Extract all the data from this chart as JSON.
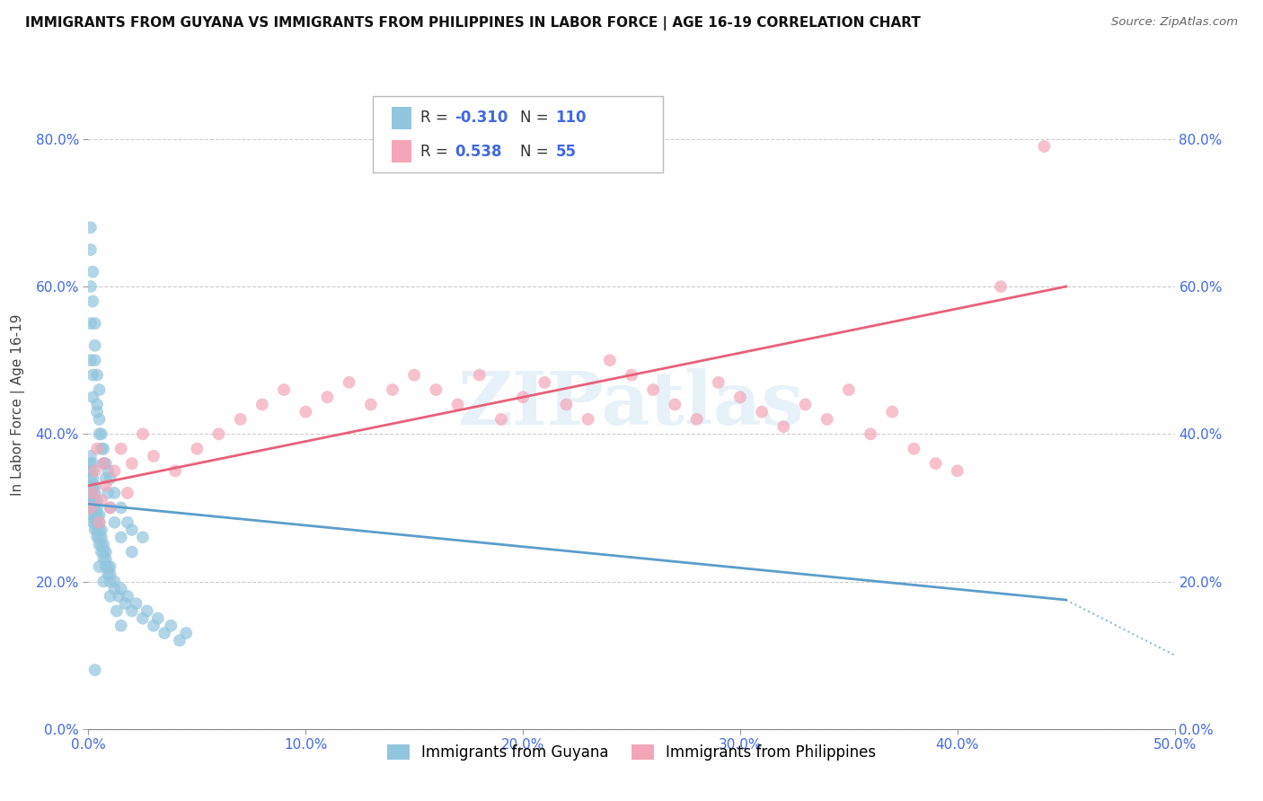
{
  "title": "IMMIGRANTS FROM GUYANA VS IMMIGRANTS FROM PHILIPPINES IN LABOR FORCE | AGE 16-19 CORRELATION CHART",
  "source": "Source: ZipAtlas.com",
  "ylabel": "In Labor Force | Age 16-19",
  "xlim": [
    0.0,
    0.5
  ],
  "ylim": [
    0.0,
    0.88
  ],
  "xticks": [
    0.0,
    0.1,
    0.2,
    0.3,
    0.4,
    0.5
  ],
  "yticks": [
    0.0,
    0.2,
    0.4,
    0.6,
    0.8
  ],
  "color_blue": "#92c5de",
  "color_pink": "#f4a6b8",
  "color_trend_blue": "#5b9ec9",
  "color_trend_pink": "#e8607a",
  "watermark_text": "ZIPatlas",
  "guyana_x": [
    0.001,
    0.001,
    0.001,
    0.001,
    0.001,
    0.001,
    0.001,
    0.001,
    0.001,
    0.001,
    0.002,
    0.002,
    0.002,
    0.002,
    0.002,
    0.002,
    0.002,
    0.002,
    0.002,
    0.003,
    0.003,
    0.003,
    0.003,
    0.003,
    0.003,
    0.003,
    0.004,
    0.004,
    0.004,
    0.004,
    0.004,
    0.004,
    0.005,
    0.005,
    0.005,
    0.005,
    0.005,
    0.006,
    0.006,
    0.006,
    0.006,
    0.007,
    0.007,
    0.007,
    0.008,
    0.008,
    0.008,
    0.009,
    0.009,
    0.01,
    0.01,
    0.01,
    0.012,
    0.012,
    0.014,
    0.015,
    0.017,
    0.018,
    0.02,
    0.022,
    0.025,
    0.027,
    0.03,
    0.032,
    0.035,
    0.038,
    0.042,
    0.045,
    0.001,
    0.001,
    0.001,
    0.002,
    0.002,
    0.003,
    0.004,
    0.005,
    0.006,
    0.007,
    0.008,
    0.009,
    0.01,
    0.012,
    0.015,
    0.018,
    0.02,
    0.025,
    0.001,
    0.001,
    0.002,
    0.002,
    0.003,
    0.003,
    0.004,
    0.004,
    0.005,
    0.005,
    0.006,
    0.007,
    0.008,
    0.009,
    0.01,
    0.012,
    0.015,
    0.02,
    0.003,
    0.005,
    0.007,
    0.01,
    0.013,
    0.015
  ],
  "guyana_y": [
    0.3,
    0.3,
    0.31,
    0.31,
    0.32,
    0.33,
    0.34,
    0.35,
    0.36,
    0.37,
    0.28,
    0.29,
    0.3,
    0.31,
    0.32,
    0.33,
    0.34,
    0.35,
    0.36,
    0.27,
    0.28,
    0.29,
    0.3,
    0.31,
    0.32,
    0.33,
    0.26,
    0.27,
    0.28,
    0.29,
    0.3,
    0.31,
    0.25,
    0.26,
    0.27,
    0.28,
    0.29,
    0.24,
    0.25,
    0.26,
    0.27,
    0.23,
    0.24,
    0.25,
    0.22,
    0.23,
    0.24,
    0.21,
    0.22,
    0.2,
    0.21,
    0.22,
    0.19,
    0.2,
    0.18,
    0.19,
    0.17,
    0.18,
    0.16,
    0.17,
    0.15,
    0.16,
    0.14,
    0.15,
    0.13,
    0.14,
    0.12,
    0.13,
    0.5,
    0.55,
    0.6,
    0.45,
    0.48,
    0.52,
    0.43,
    0.46,
    0.4,
    0.38,
    0.36,
    0.35,
    0.34,
    0.32,
    0.3,
    0.28,
    0.27,
    0.26,
    0.65,
    0.68,
    0.58,
    0.62,
    0.55,
    0.5,
    0.48,
    0.44,
    0.42,
    0.4,
    0.38,
    0.36,
    0.34,
    0.32,
    0.3,
    0.28,
    0.26,
    0.24,
    0.08,
    0.22,
    0.2,
    0.18,
    0.16,
    0.14
  ],
  "philippines_x": [
    0.001,
    0.002,
    0.003,
    0.004,
    0.005,
    0.006,
    0.007,
    0.008,
    0.01,
    0.012,
    0.015,
    0.018,
    0.02,
    0.025,
    0.03,
    0.04,
    0.05,
    0.06,
    0.07,
    0.08,
    0.09,
    0.1,
    0.11,
    0.12,
    0.13,
    0.14,
    0.15,
    0.16,
    0.17,
    0.18,
    0.19,
    0.2,
    0.21,
    0.22,
    0.23,
    0.24,
    0.25,
    0.26,
    0.27,
    0.28,
    0.29,
    0.3,
    0.31,
    0.32,
    0.33,
    0.34,
    0.35,
    0.36,
    0.37,
    0.38,
    0.39,
    0.4,
    0.42,
    0.44
  ],
  "philippines_y": [
    0.3,
    0.32,
    0.35,
    0.38,
    0.28,
    0.31,
    0.36,
    0.33,
    0.3,
    0.35,
    0.38,
    0.32,
    0.36,
    0.4,
    0.37,
    0.35,
    0.38,
    0.4,
    0.42,
    0.44,
    0.46,
    0.43,
    0.45,
    0.47,
    0.44,
    0.46,
    0.48,
    0.46,
    0.44,
    0.48,
    0.42,
    0.45,
    0.47,
    0.44,
    0.42,
    0.5,
    0.48,
    0.46,
    0.44,
    0.42,
    0.47,
    0.45,
    0.43,
    0.41,
    0.44,
    0.42,
    0.46,
    0.4,
    0.43,
    0.38,
    0.36,
    0.35,
    0.6,
    0.79
  ],
  "trend_blue_x0": 0.0,
  "trend_blue_y0": 0.305,
  "trend_blue_x1": 0.45,
  "trend_blue_y1": 0.175,
  "trend_blue_dash_x0": 0.45,
  "trend_blue_dash_y0": 0.175,
  "trend_blue_dash_x1": 0.5,
  "trend_blue_dash_y1": 0.1,
  "trend_pink_x0": 0.0,
  "trend_pink_y0": 0.33,
  "trend_pink_x1": 0.45,
  "trend_pink_y1": 0.6
}
